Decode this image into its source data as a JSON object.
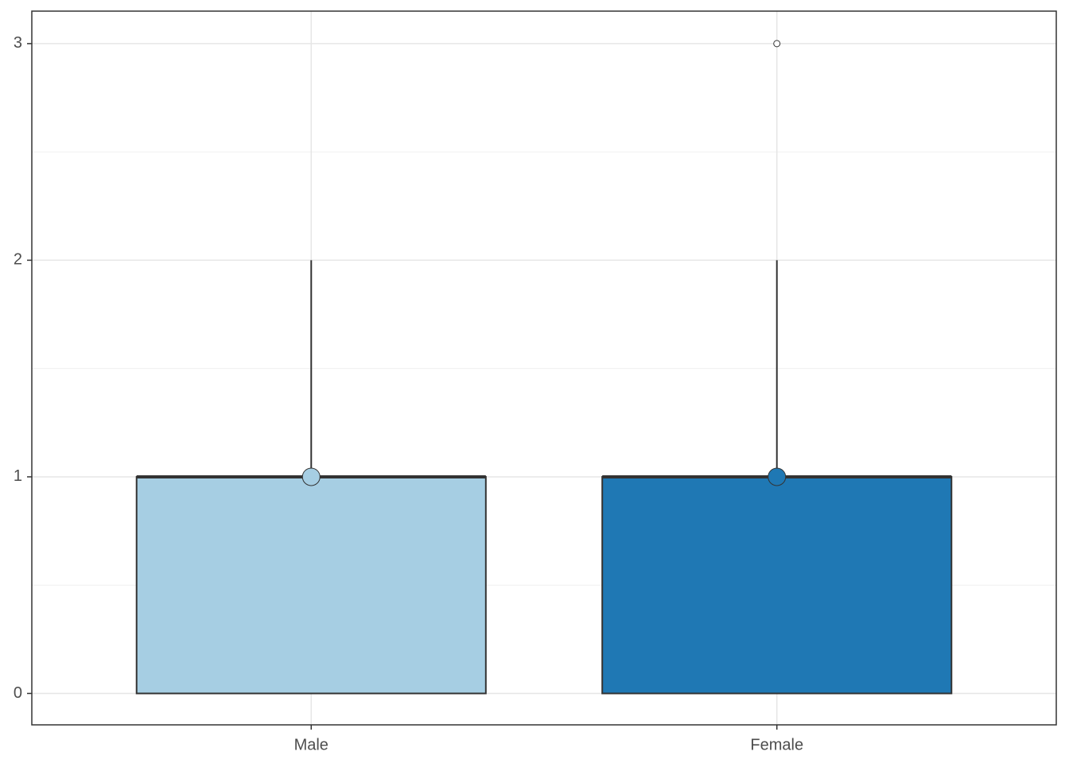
{
  "chart_data": {
    "type": "box",
    "categories": [
      "Male",
      "Female"
    ],
    "colors": [
      "#a6cee3",
      "#1f78b4"
    ],
    "boxes": [
      {
        "min": 0,
        "q1": 0,
        "median": 1,
        "q3": 1,
        "max": 2,
        "mean": 1,
        "outliers": []
      },
      {
        "min": 0,
        "q1": 0,
        "median": 1,
        "q3": 1,
        "max": 2,
        "mean": 1,
        "outliers": [
          3
        ]
      }
    ],
    "ylim": [
      -0.145,
      3.15
    ],
    "yticks": [
      0,
      1,
      2,
      3
    ],
    "minor_yticks": [
      0.5,
      1.5,
      2.5
    ],
    "grid": true
  }
}
